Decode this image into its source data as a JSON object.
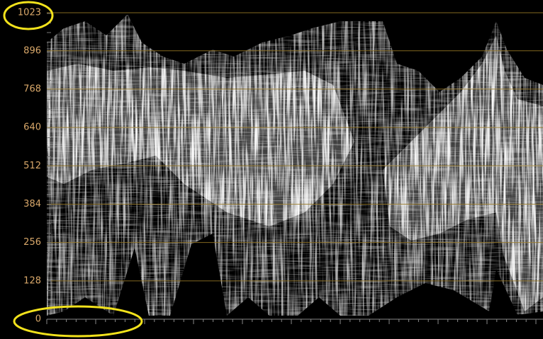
{
  "scope": {
    "yticks": [
      0,
      128,
      256,
      384,
      512,
      640,
      768,
      896,
      1023
    ],
    "ymax": 1023
  }
}
